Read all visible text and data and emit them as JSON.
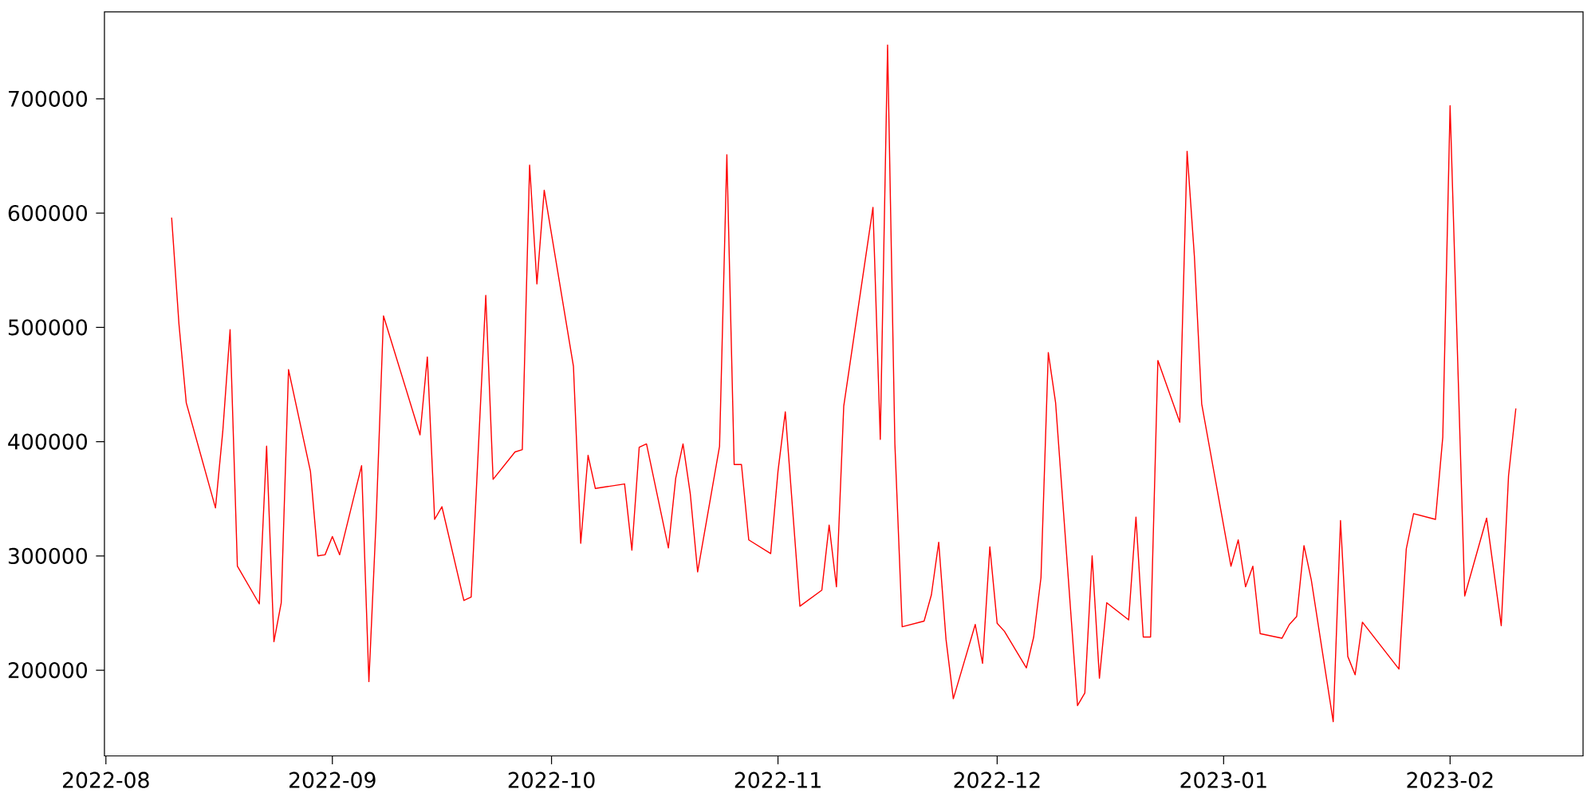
{
  "chart_data": {
    "type": "line",
    "color": "#ff0000",
    "x": [
      "2022-08-10",
      "2022-08-11",
      "2022-08-12",
      "2022-08-16",
      "2022-08-17",
      "2022-08-18",
      "2022-08-19",
      "2022-08-22",
      "2022-08-23",
      "2022-08-24",
      "2022-08-25",
      "2022-08-26",
      "2022-08-29",
      "2022-08-30",
      "2022-08-31",
      "2022-09-01",
      "2022-09-02",
      "2022-09-05",
      "2022-09-06",
      "2022-09-07",
      "2022-09-08",
      "2022-09-13",
      "2022-09-14",
      "2022-09-15",
      "2022-09-16",
      "2022-09-19",
      "2022-09-20",
      "2022-09-22",
      "2022-09-23",
      "2022-09-26",
      "2022-09-27",
      "2022-09-28",
      "2022-09-29",
      "2022-09-30",
      "2022-10-04",
      "2022-10-05",
      "2022-10-06",
      "2022-10-07",
      "2022-10-11",
      "2022-10-12",
      "2022-10-13",
      "2022-10-14",
      "2022-10-17",
      "2022-10-18",
      "2022-10-19",
      "2022-10-20",
      "2022-10-21",
      "2022-10-24",
      "2022-10-25",
      "2022-10-26",
      "2022-10-27",
      "2022-10-28",
      "2022-10-31",
      "2022-11-01",
      "2022-11-02",
      "2022-11-04",
      "2022-11-07",
      "2022-11-08",
      "2022-11-09",
      "2022-11-10",
      "2022-11-14",
      "2022-11-15",
      "2022-11-16",
      "2022-11-17",
      "2022-11-18",
      "2022-11-21",
      "2022-11-22",
      "2022-11-23",
      "2022-11-24",
      "2022-11-25",
      "2022-11-28",
      "2022-11-29",
      "2022-11-30",
      "2022-12-01",
      "2022-12-02",
      "2022-12-05",
      "2022-12-06",
      "2022-12-07",
      "2022-12-08",
      "2022-12-09",
      "2022-12-12",
      "2022-12-13",
      "2022-12-14",
      "2022-12-15",
      "2022-12-16",
      "2022-12-19",
      "2022-12-20",
      "2022-12-21",
      "2022-12-22",
      "2022-12-23",
      "2022-12-26",
      "2022-12-27",
      "2022-12-28",
      "2022-12-29",
      "2023-01-02",
      "2023-01-03",
      "2023-01-04",
      "2023-01-05",
      "2023-01-06",
      "2023-01-09",
      "2023-01-10",
      "2023-01-11",
      "2023-01-12",
      "2023-01-13",
      "2023-01-16",
      "2023-01-17",
      "2023-01-18",
      "2023-01-19",
      "2023-01-20",
      "2023-01-25",
      "2023-01-26",
      "2023-01-27",
      "2023-01-30",
      "2023-01-31",
      "2023-02-01",
      "2023-02-03",
      "2023-02-06",
      "2023-02-08",
      "2023-02-09",
      "2023-02-10"
    ],
    "values": [
      596000,
      503000,
      434000,
      342000,
      409000,
      498000,
      291000,
      258000,
      396000,
      225000,
      259000,
      463000,
      374000,
      300000,
      301000,
      317000,
      301000,
      379000,
      190000,
      333000,
      510000,
      406000,
      474000,
      332000,
      343000,
      261000,
      264000,
      528000,
      367000,
      391000,
      393000,
      642000,
      538000,
      620000,
      466000,
      311000,
      388000,
      359000,
      363000,
      305000,
      395000,
      398000,
      307000,
      368000,
      398000,
      354000,
      286000,
      396000,
      651000,
      380000,
      380000,
      314000,
      302000,
      374000,
      426000,
      256000,
      270000,
      327000,
      273000,
      431000,
      605000,
      402000,
      747000,
      398000,
      238000,
      243000,
      266000,
      312000,
      227000,
      175000,
      240000,
      206000,
      308000,
      241000,
      234000,
      202000,
      229000,
      281000,
      478000,
      434000,
      169000,
      180000,
      300000,
      193000,
      259000,
      244000,
      334000,
      229000,
      229000,
      471000,
      417000,
      654000,
      562000,
      433000,
      291000,
      314000,
      273000,
      291000,
      232000,
      228000,
      240000,
      247000,
      309000,
      279000,
      155000,
      331000,
      212000,
      196000,
      242000,
      201000,
      306000,
      337000,
      332000,
      404000,
      694000,
      265000,
      333000,
      239000,
      370000,
      429000
    ],
    "xlim": [
      "2022-07-31T19:12",
      "2023-02-19T04:48"
    ],
    "ylim": [
      125000,
      776000
    ],
    "xticks": [
      {
        "value": "2022-08-01",
        "label": "2022-08"
      },
      {
        "value": "2022-09-01",
        "label": "2022-09"
      },
      {
        "value": "2022-10-01",
        "label": "2022-10"
      },
      {
        "value": "2022-11-01",
        "label": "2022-11"
      },
      {
        "value": "2022-12-01",
        "label": "2022-12"
      },
      {
        "value": "2023-01-01",
        "label": "2023-01"
      },
      {
        "value": "2023-02-01",
        "label": "2023-02"
      }
    ],
    "yticks": [
      200000,
      300000,
      400000,
      500000,
      600000,
      700000
    ]
  }
}
